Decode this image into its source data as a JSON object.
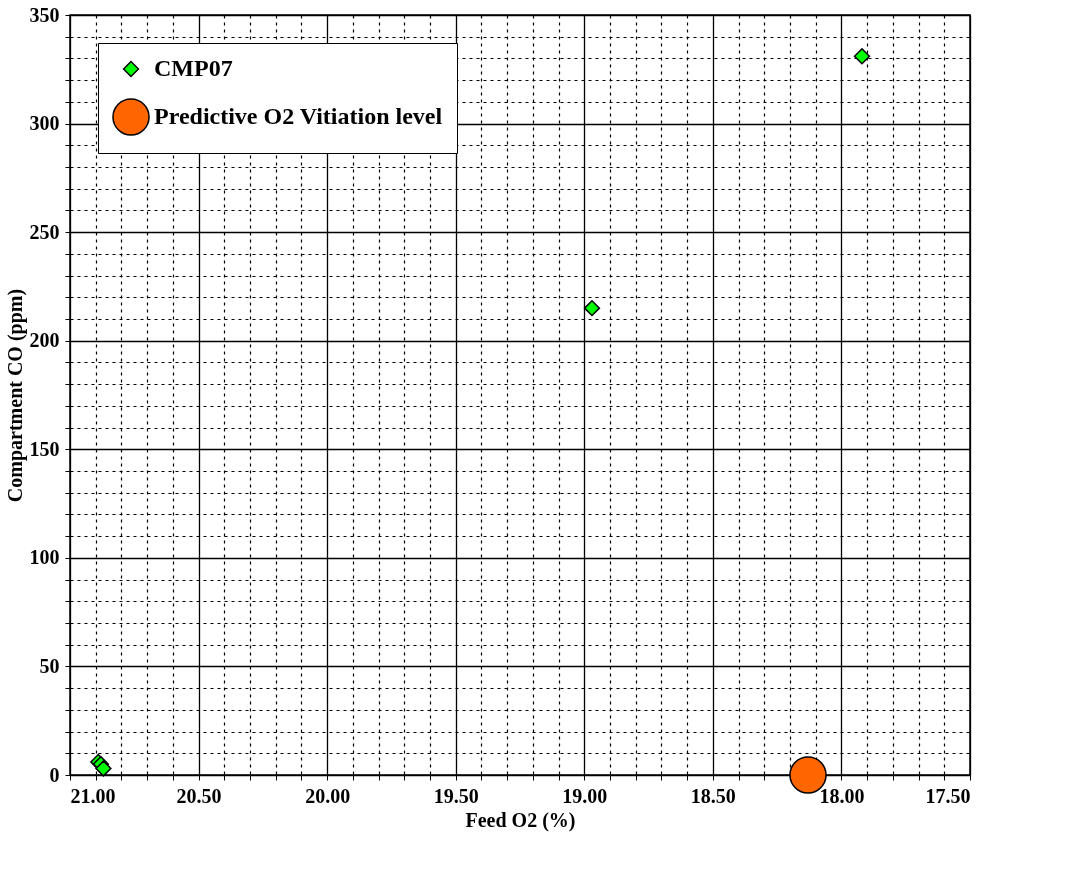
{
  "chart_data": {
    "type": "scatter",
    "xlabel": "Feed O2 (%)",
    "ylabel": "Compartment CO (ppm)",
    "series": [
      {
        "name": "CMP07",
        "color": "#00ff00",
        "marker": "diamond",
        "x": [
          20.89,
          20.88,
          20.87,
          18.97,
          17.92
        ],
        "values": [
          6,
          5,
          3,
          215,
          331
        ]
      },
      {
        "name": "Predictive O2 Vitiation level",
        "color": "#ff6600",
        "marker": "circle",
        "x": [
          18.13
        ],
        "values": [
          0
        ]
      }
    ],
    "xlim": [
      21,
      17.5
    ],
    "xticks": [
      {
        "value": 21,
        "label": "21.00"
      },
      {
        "value": 20.9,
        "label": null
      },
      {
        "value": 20.8,
        "label": null
      },
      {
        "value": 20.7,
        "label": null
      },
      {
        "value": 20.6,
        "label": null
      },
      {
        "value": 20.5,
        "label": "20.50"
      },
      {
        "value": 20.4,
        "label": null
      },
      {
        "value": 20.3,
        "label": null
      },
      {
        "value": 20.2,
        "label": null
      },
      {
        "value": 20.1,
        "label": null
      },
      {
        "value": 20,
        "label": "20.00"
      },
      {
        "value": 19.9,
        "label": null
      },
      {
        "value": 19.8,
        "label": null
      },
      {
        "value": 19.7,
        "label": null
      },
      {
        "value": 19.6,
        "label": null
      },
      {
        "value": 19.5,
        "label": "19.50"
      },
      {
        "value": 19.4,
        "label": null
      },
      {
        "value": 19.3,
        "label": null
      },
      {
        "value": 19.2,
        "label": null
      },
      {
        "value": 19.1,
        "label": null
      },
      {
        "value": 19,
        "label": "19.00"
      },
      {
        "value": 18.9,
        "label": null
      },
      {
        "value": 18.8,
        "label": null
      },
      {
        "value": 18.7,
        "label": null
      },
      {
        "value": 18.6,
        "label": null
      },
      {
        "value": 18.5,
        "label": "18.50"
      },
      {
        "value": 18.4,
        "label": null
      },
      {
        "value": 18.3,
        "label": null
      },
      {
        "value": 18.2,
        "label": null
      },
      {
        "value": 18.1,
        "label": null
      },
      {
        "value": 18,
        "label": "18.00"
      },
      {
        "value": 17.9,
        "label": null
      },
      {
        "value": 17.8,
        "label": null
      },
      {
        "value": 17.7,
        "label": null
      },
      {
        "value": 17.6,
        "label": null
      },
      {
        "value": 17.5,
        "label": "17.50"
      }
    ],
    "ylim": [
      0,
      350
    ],
    "yticks": [
      0,
      {
        "value": 10,
        "label": null
      },
      {
        "value": 20,
        "label": null
      },
      {
        "value": 30,
        "label": null
      },
      {
        "value": 40,
        "label": null
      },
      50,
      {
        "value": 60,
        "label": null
      },
      {
        "value": 70,
        "label": null
      },
      {
        "value": 80,
        "label": null
      },
      {
        "value": 90,
        "label": null
      },
      100,
      {
        "value": 110,
        "label": null
      },
      {
        "value": 120,
        "label": null
      },
      {
        "value": 130,
        "label": null
      },
      {
        "value": 140,
        "label": null
      },
      150,
      {
        "value": 160,
        "label": null
      },
      {
        "value": 170,
        "label": null
      },
      {
        "value": 180,
        "label": null
      },
      {
        "value": 190,
        "label": null
      },
      200,
      {
        "value": 210,
        "label": null
      },
      {
        "value": 220,
        "label": null
      },
      {
        "value": 230,
        "label": null
      },
      {
        "value": 240,
        "label": null
      },
      250,
      {
        "value": 260,
        "label": null
      },
      {
        "value": 270,
        "label": null
      },
      {
        "value": 280,
        "label": null
      },
      {
        "value": 290,
        "label": null
      },
      300,
      {
        "value": 310,
        "label": null
      },
      {
        "value": 320,
        "label": null
      },
      {
        "value": 330,
        "label": null
      },
      {
        "value": 340,
        "label": null
      },
      350
    ],
    "grid": true,
    "legend": "top left"
  }
}
